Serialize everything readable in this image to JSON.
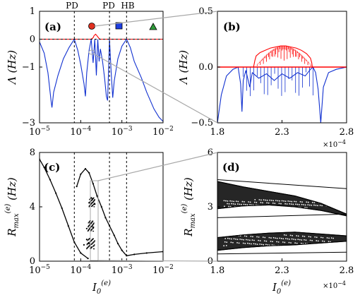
{
  "colors": {
    "lyap_max": "#ff0000",
    "lyap_min": "#1030d0",
    "bifurcation": "#000000",
    "marker_circle": "#e03020",
    "marker_square": "#1d3ee0",
    "marker_triangle": "#2e9b3a",
    "zoom_lines": "#a8a8a8"
  },
  "annotations": {
    "top_labels": [
      "PD",
      "PD",
      "HB"
    ],
    "markers": [
      "circle-marker",
      "square-marker",
      "triangle-marker"
    ]
  },
  "chart_data": [
    {
      "panel": "(a)",
      "type": "line",
      "ylabel": "Λ (Hz)",
      "x_scale": "log",
      "xlim": [
        1e-05,
        0.01
      ],
      "ylim": [
        -3,
        1
      ],
      "xticks": [
        "10^-5",
        "10^-4",
        "10^-3",
        "10^-2"
      ],
      "yticks": [
        "1",
        "0",
        "-1",
        "-3"
      ],
      "vlines": [
        7e-05,
        0.0005,
        0.0013
      ],
      "hline": 0,
      "series": [
        {
          "color": "lyap_max",
          "points": [
            [
              1e-05,
              0
            ],
            [
              7e-05,
              0
            ],
            [
              0.00018,
              0
            ],
            [
              0.0002,
              0.05
            ],
            [
              0.00021,
              0.12
            ],
            [
              0.00023,
              0.18
            ],
            [
              0.00025,
              0.12
            ],
            [
              0.00027,
              0.05
            ],
            [
              0.00029,
              0
            ],
            [
              0.0005,
              0
            ],
            [
              0.0013,
              0
            ],
            [
              0.01,
              0
            ]
          ]
        },
        {
          "color": "lyap_min",
          "points": [
            [
              1e-05,
              -0.1
            ],
            [
              1.3e-05,
              -0.5
            ],
            [
              1.6e-05,
              -1.2
            ],
            [
              1.9e-05,
              -2.2
            ],
            [
              2e-05,
              -2.45
            ],
            [
              2.2e-05,
              -1.9
            ],
            [
              2.8e-05,
              -1.3
            ],
            [
              3.8e-05,
              -0.7
            ],
            [
              5.2e-05,
              -0.3
            ],
            [
              7e-05,
              0.0
            ],
            [
              8.5e-05,
              -0.4
            ],
            [
              0.0001,
              -0.9
            ],
            [
              0.00012,
              -1.6
            ],
            [
              0.00013,
              -2.05
            ],
            [
              0.00014,
              -1.2
            ],
            [
              0.00016,
              -0.4
            ],
            [
              0.00018,
              0.0
            ],
            [
              0.0002,
              -0.85
            ],
            [
              0.00022,
              0.0
            ],
            [
              0.00024,
              -1.3
            ],
            [
              0.00026,
              0.0
            ],
            [
              0.00028,
              -0.8
            ],
            [
              0.0003,
              -0.35
            ],
            [
              0.00034,
              -0.8
            ],
            [
              0.00038,
              -1.4
            ],
            [
              0.00042,
              -2.05
            ],
            [
              0.00045,
              -2.2
            ],
            [
              0.00048,
              -0.9
            ],
            [
              0.0005,
              0.0
            ],
            [
              0.00055,
              -1.2
            ],
            [
              0.0006,
              -2.1
            ],
            [
              0.00065,
              -1.5
            ],
            [
              0.0008,
              -0.7
            ],
            [
              0.001,
              -0.25
            ],
            [
              0.0013,
              0.0
            ],
            [
              0.0016,
              -0.3
            ],
            [
              0.002,
              -0.8
            ],
            [
              0.003,
              -1.4
            ],
            [
              0.004,
              -1.9
            ],
            [
              0.006,
              -2.5
            ],
            [
              0.008,
              -2.8
            ],
            [
              0.01,
              -2.95
            ]
          ]
        }
      ]
    },
    {
      "panel": "(b)",
      "type": "line",
      "ylabel": "Λ (Hz)",
      "xlim": [
        1.8,
        2.8
      ],
      "ylim": [
        -0.5,
        0.5
      ],
      "x_multiplier": "×10^-4",
      "xticks": [
        "1.8",
        "2.3",
        "2.8"
      ],
      "yticks": [
        "0.5",
        "0.0",
        "-0.5"
      ],
      "hline": 0,
      "series": [
        {
          "color": "lyap_max",
          "points": [
            [
              1.8,
              0
            ],
            [
              2.08,
              0
            ],
            [
              2.09,
              0.06
            ],
            [
              2.1,
              0.1
            ],
            [
              2.13,
              0.13
            ],
            [
              2.17,
              0.15
            ],
            [
              2.21,
              0.17
            ],
            [
              2.25,
              0.18
            ],
            [
              2.29,
              0.19
            ],
            [
              2.33,
              0.19
            ],
            [
              2.37,
              0.18
            ],
            [
              2.41,
              0.17
            ],
            [
              2.45,
              0.15
            ],
            [
              2.49,
              0.12
            ],
            [
              2.52,
              0.08
            ],
            [
              2.53,
              0.04
            ],
            [
              2.535,
              0
            ],
            [
              2.8,
              0
            ]
          ]
        },
        {
          "color": "lyap_min",
          "points": [
            [
              1.8,
              -0.5
            ],
            [
              1.83,
              -0.25
            ],
            [
              1.87,
              -0.08
            ],
            [
              1.92,
              -0.02
            ],
            [
              1.96,
              0.0
            ],
            [
              1.98,
              -0.15
            ],
            [
              1.99,
              -0.4
            ],
            [
              2.0,
              -0.12
            ],
            [
              2.02,
              -0.03
            ],
            [
              2.05,
              -0.18
            ],
            [
              2.07,
              -0.05
            ],
            [
              2.12,
              -0.1
            ],
            [
              2.18,
              -0.06
            ],
            [
              2.24,
              -0.12
            ],
            [
              2.3,
              -0.06
            ],
            [
              2.36,
              -0.1
            ],
            [
              2.42,
              -0.05
            ],
            [
              2.48,
              -0.08
            ],
            [
              2.52,
              -0.02
            ],
            [
              2.54,
              0.0
            ],
            [
              2.56,
              -0.05
            ],
            [
              2.58,
              -0.2
            ],
            [
              2.6,
              -0.5
            ],
            [
              2.62,
              -0.18
            ],
            [
              2.66,
              -0.05
            ],
            [
              2.72,
              -0.02
            ],
            [
              2.8,
              0.0
            ]
          ]
        }
      ]
    },
    {
      "panel": "(c)",
      "type": "scatter",
      "xlabel": "I0(e)",
      "ylabel": "Rmax(e) (Hz)",
      "x_scale": "log",
      "xlim": [
        1e-05,
        0.01
      ],
      "ylim": [
        0,
        8
      ],
      "xticks": [
        "10^-5",
        "10^-4",
        "10^-3",
        "10^-2"
      ],
      "yticks": [
        "8",
        "4",
        "0"
      ],
      "vlines": [
        7e-05,
        0.0005,
        0.0013
      ],
      "series": [
        {
          "color": "bifurcation",
          "points": [
            [
              1e-05,
              7.5
            ],
            [
              1.3e-05,
              6.9
            ],
            [
              1.8e-05,
              6.0
            ],
            [
              2.5e-05,
              5.0
            ],
            [
              3.5e-05,
              3.9
            ],
            [
              5e-05,
              2.6
            ],
            [
              7e-05,
              1.4
            ],
            [
              0.0001,
              0.6
            ],
            [
              0.00015,
              0.2
            ],
            [
              8e-05,
              5.5
            ],
            [
              0.0001,
              6.4
            ],
            [
              0.00013,
              6.8
            ],
            [
              0.00016,
              6.5
            ],
            [
              0.0002,
              5.7
            ],
            [
              0.00025,
              4.8
            ],
            [
              0.00032,
              4.0
            ],
            [
              0.0004,
              3.2
            ],
            [
              0.0005,
              2.6
            ],
            [
              0.00065,
              1.9
            ],
            [
              0.0008,
              1.3
            ],
            [
              0.001,
              0.8
            ],
            [
              0.0013,
              0.4
            ],
            [
              0.002,
              0.5
            ],
            [
              0.004,
              0.6
            ],
            [
              0.01,
              0.7
            ],
            [
              0.00012,
              1.2
            ],
            [
              0.00014,
              1.6
            ],
            [
              0.00016,
              1.3
            ],
            [
              0.00018,
              1.0
            ],
            [
              0.00014,
              2.4
            ],
            [
              0.00017,
              2.8
            ],
            [
              0.0002,
              2.5
            ],
            [
              0.00016,
              4.3
            ],
            [
              0.00019,
              4.6
            ],
            [
              0.00022,
              4.2
            ]
          ]
        }
      ]
    },
    {
      "panel": "(d)",
      "type": "scatter",
      "xlabel": "I0(e)",
      "ylabel": "Rmax(e) (Hz)",
      "xlim": [
        1.8,
        2.8
      ],
      "ylim": [
        0,
        6
      ],
      "x_multiplier": "×10^-4",
      "xticks": [
        "1.8",
        "2.3",
        "2.8"
      ],
      "yticks": [
        "6",
        "3",
        "0"
      ],
      "series": [
        {
          "color": "bifurcation",
          "points": [
            [
              1.8,
              4.4
            ],
            [
              2.0,
              4.1
            ],
            [
              2.2,
              3.85
            ],
            [
              2.4,
              3.6
            ],
            [
              2.6,
              3.2
            ],
            [
              2.8,
              2.6
            ],
            [
              1.8,
              2.9
            ],
            [
              2.0,
              3.05
            ],
            [
              2.2,
              3.1
            ],
            [
              2.4,
              3.0
            ],
            [
              2.6,
              2.8
            ],
            [
              2.8,
              2.5
            ],
            [
              1.8,
              0.6
            ],
            [
              2.0,
              0.75
            ],
            [
              2.2,
              0.85
            ],
            [
              2.4,
              0.9
            ],
            [
              2.6,
              1.0
            ],
            [
              2.8,
              1.1
            ],
            [
              1.8,
              1.3
            ],
            [
              2.0,
              1.45
            ],
            [
              2.2,
              1.55
            ],
            [
              2.4,
              1.6
            ],
            [
              2.6,
              1.5
            ],
            [
              2.8,
              1.4
            ]
          ]
        }
      ]
    }
  ]
}
